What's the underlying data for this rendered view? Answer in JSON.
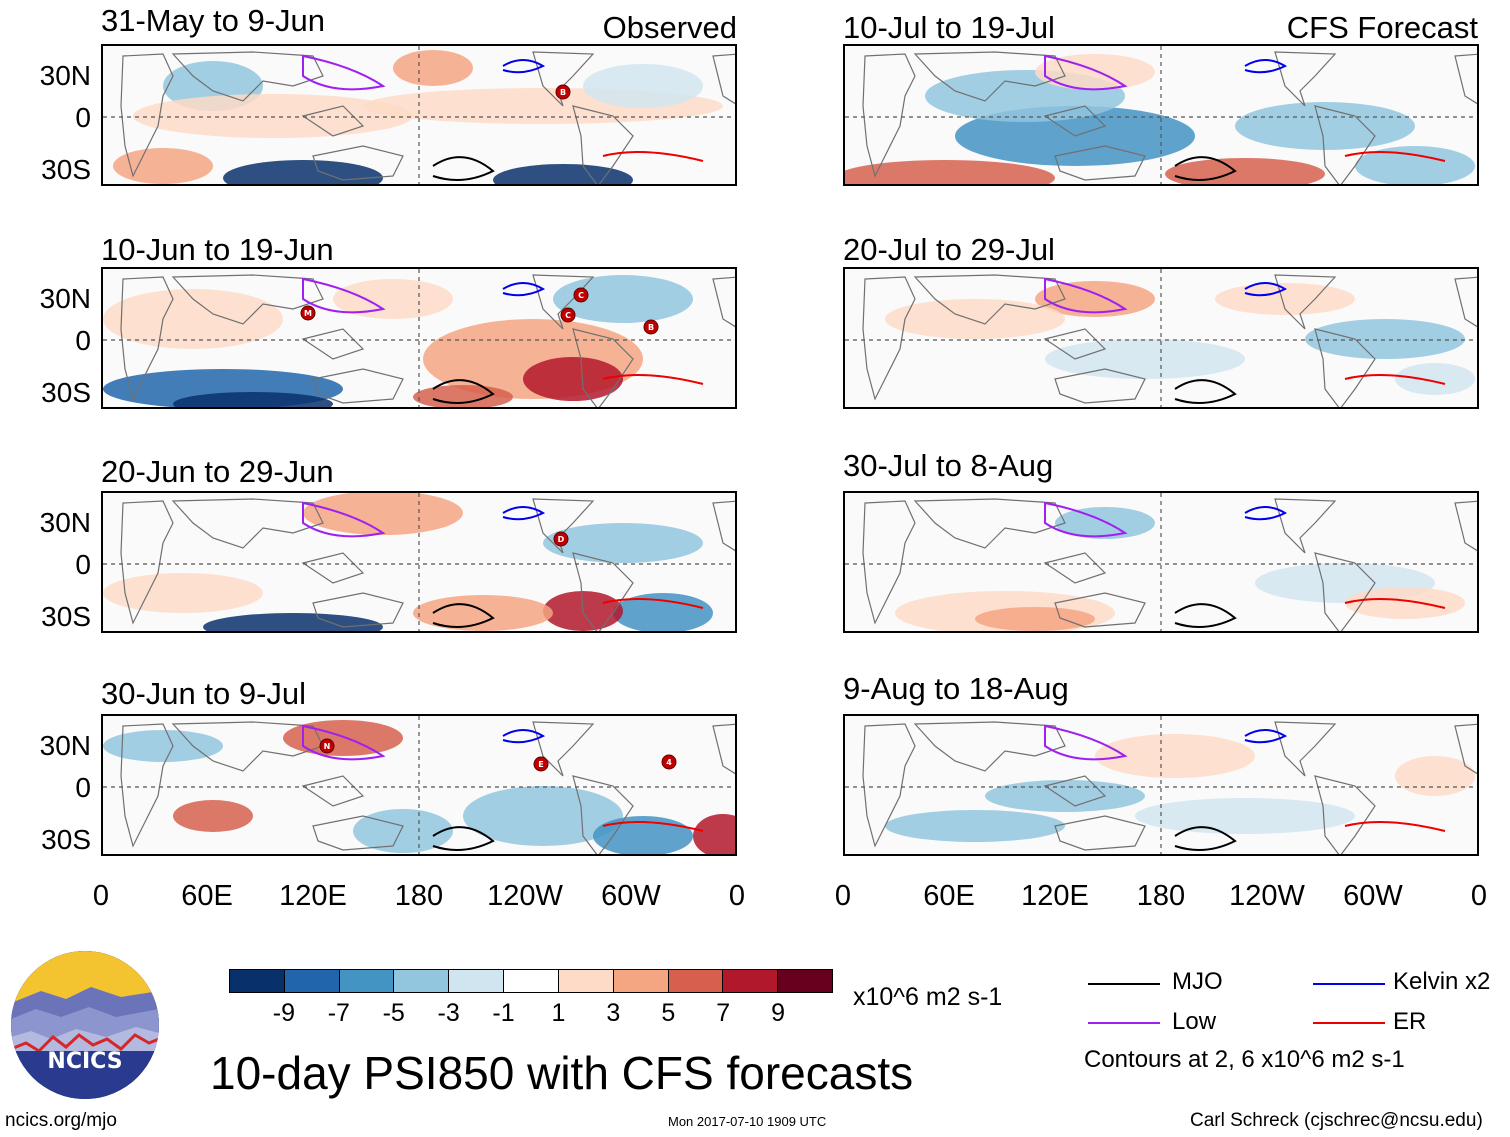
{
  "header": {
    "observed_label": "Observed",
    "forecast_label": "CFS Forecast"
  },
  "panels": {
    "observed": [
      {
        "title": "31-May to 9-Jun",
        "storms": [
          "B"
        ]
      },
      {
        "title": "10-Jun to 19-Jun",
        "storms": [
          "M",
          "C",
          "C",
          "B"
        ]
      },
      {
        "title": "20-Jun to 29-Jun",
        "storms": [
          "D"
        ]
      },
      {
        "title": "30-Jun to 9-Jul",
        "storms": [
          "N",
          "E",
          "4"
        ]
      }
    ],
    "forecast": [
      {
        "title": "10-Jul to 19-Jul"
      },
      {
        "title": "20-Jul to 29-Jul"
      },
      {
        "title": "30-Jul to 8-Aug"
      },
      {
        "title": "9-Aug to 18-Aug"
      }
    ]
  },
  "axes": {
    "y_labels": [
      "30N",
      "0",
      "30S"
    ],
    "x_labels": [
      "0",
      "60E",
      "120E",
      "180",
      "120W",
      "60W",
      "0"
    ]
  },
  "colorbar": {
    "colors": [
      "#08306b",
      "#2166ac",
      "#4393c3",
      "#92c5de",
      "#d1e5f0",
      "#ffffff",
      "#fddbc7",
      "#f4a582",
      "#d6604d",
      "#b2182b",
      "#67001f"
    ],
    "labels": [
      "-9",
      "-7",
      "-5",
      "-3",
      "-1",
      "1",
      "3",
      "5",
      "7",
      "9"
    ],
    "unit": "x10^6 m2 s-1"
  },
  "legend": {
    "items": [
      {
        "label": "MJO",
        "color": "#000000"
      },
      {
        "label": "Kelvin x2",
        "color": "#0000ee"
      },
      {
        "label": "Low",
        "color": "#a020f0"
      },
      {
        "label": "ER",
        "color": "#ee0000"
      }
    ],
    "note": "Contours at 2, 6 x10^6 m2 s-1"
  },
  "title": "10-day PSI850 with CFS forecasts",
  "logo_text": "NCICS",
  "footer": {
    "left": "ncics.org/mjo",
    "center": "Mon 2017-07-10 1909 UTC",
    "right": "Carl Schreck (cjschrec@ncsu.edu)"
  }
}
